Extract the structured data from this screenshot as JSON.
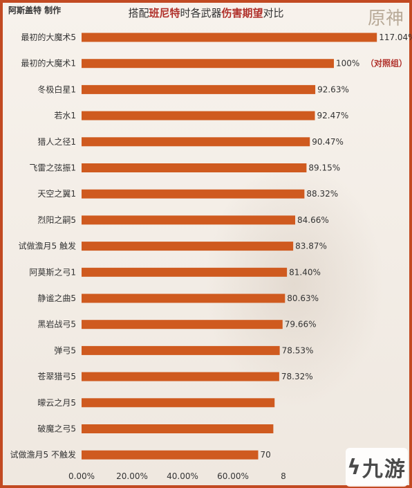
{
  "header": {
    "credit": "阿斯盖特 制作",
    "title_parts": [
      "搭配",
      "班尼特",
      "时各武器",
      "伤害期望",
      "对比"
    ],
    "logo_text": "原神"
  },
  "watermark": {
    "text": "九游",
    "icon": "nine-game-logo-icon"
  },
  "colors": {
    "bar": "#cf5a1f",
    "frame": "#c24a22",
    "highlight": "#b0302a",
    "note": "#b0302a"
  },
  "chart_data": {
    "type": "bar",
    "orientation": "horizontal",
    "title": "搭配班尼特时各武器伤害期望对比",
    "categories": [
      "最初的大魔术5",
      "最初的大魔术1",
      "冬极白星1",
      "若水1",
      "猎人之径1",
      "飞雷之弦振1",
      "天空之翼1",
      "烈阳之嗣5",
      "试做澹月5 触发",
      "阿莫斯之弓1",
      "静谧之曲5",
      "黑岩战弓5",
      "弹弓5",
      "苍翠猎弓5",
      "曚云之月5",
      "破魔之弓5",
      "试做澹月5 不触发"
    ],
    "values": [
      117.04,
      100,
      92.63,
      92.47,
      90.47,
      89.15,
      88.32,
      84.66,
      83.87,
      81.4,
      80.63,
      79.66,
      78.53,
      78.32,
      76.5,
      76.0,
      70.0
    ],
    "value_labels": [
      "117.04%",
      "100%",
      "92.63%",
      "92.47%",
      "90.47%",
      "89.15%",
      "88.32%",
      "84.66%",
      "83.87%",
      "81.40%",
      "80.63%",
      "79.66%",
      "78.53%",
      "78.32%",
      "",
      "",
      "70"
    ],
    "annotations": [
      {
        "category": "最初的大魔术1",
        "text": "（对照组）"
      }
    ],
    "xticks": [
      "0.00%",
      "20.00%",
      "40.00%",
      "60.00%",
      "8"
    ],
    "xtick_values": [
      0,
      20,
      40,
      60,
      80
    ],
    "xlim": [
      0,
      120
    ],
    "xlabel": "",
    "ylabel": "",
    "grid": false,
    "legend": "none"
  }
}
